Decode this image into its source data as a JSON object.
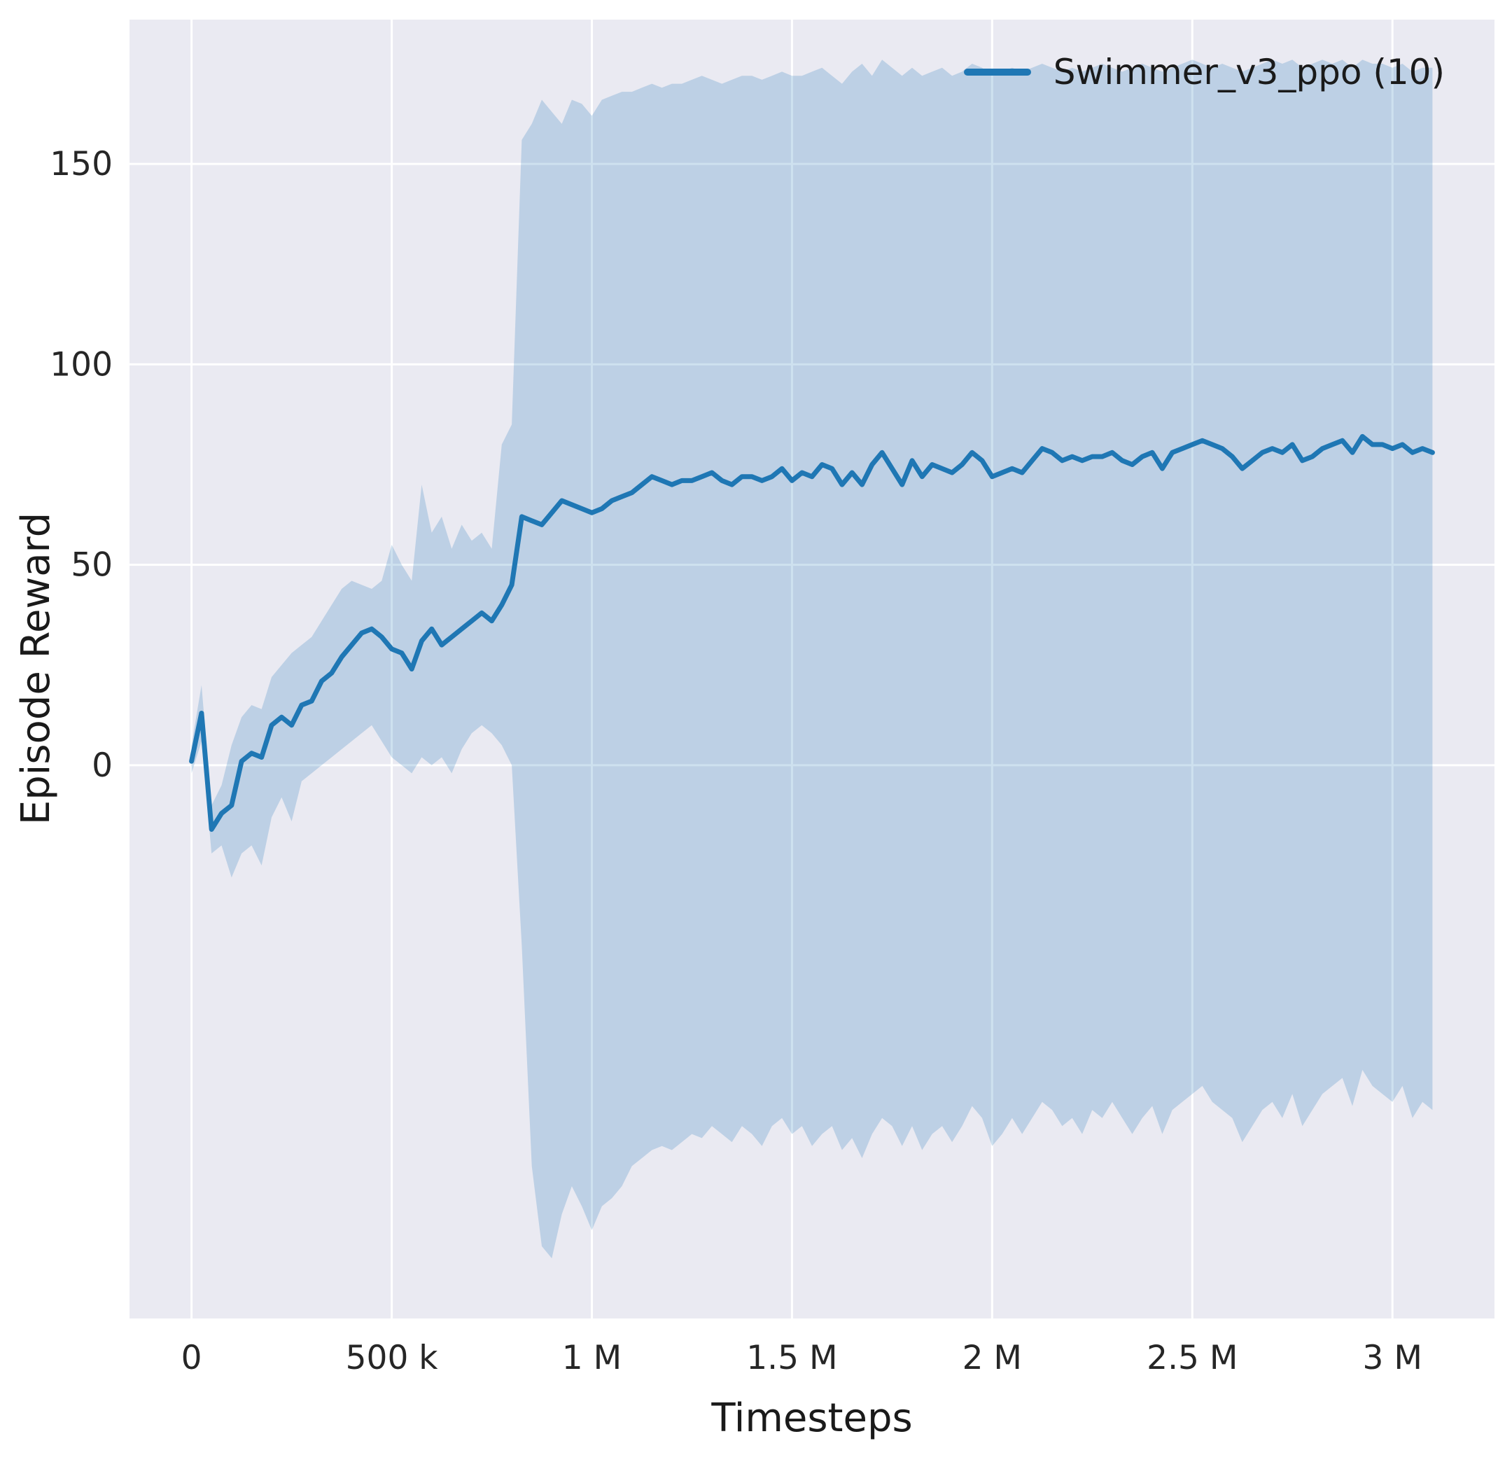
{
  "figure": {
    "background": "#ffffff",
    "axes_background": "#eaeaf2",
    "grid_color": "#ffffff",
    "line_color": "#1f77b4",
    "band_opacity": 0.22,
    "tick_color": "#262626",
    "label_color": "#1a1a1a"
  },
  "chart_data": {
    "type": "line",
    "title": "",
    "xlabel": "Timesteps",
    "ylabel": "Episode Reward",
    "grid": true,
    "legend_position": "upper right",
    "legend": [
      {
        "label": "Swimmer_v3_ppo (10)",
        "color": "#1f77b4"
      }
    ],
    "xlim": [
      -155000,
      3255000
    ],
    "ylim": [
      -138,
      186
    ],
    "x_ticks": [
      {
        "v": 0,
        "label": "0"
      },
      {
        "v": 500000,
        "label": "500 k"
      },
      {
        "v": 1000000,
        "label": "1 M"
      },
      {
        "v": 1500000,
        "label": "1.5 M"
      },
      {
        "v": 2000000,
        "label": "2 M"
      },
      {
        "v": 2500000,
        "label": "2.5 M"
      },
      {
        "v": 3000000,
        "label": "3 M"
      }
    ],
    "y_ticks": [
      {
        "v": 0,
        "label": "0"
      },
      {
        "v": 50,
        "label": "50"
      },
      {
        "v": 100,
        "label": "100"
      },
      {
        "v": 150,
        "label": "150"
      }
    ],
    "series": [
      {
        "name": "Swimmer_v3_ppo (10)",
        "points_format": [
          "timesteps",
          "mean_episode_reward",
          "band_lower",
          "band_upper"
        ],
        "points": [
          [
            0,
            1,
            -2,
            5
          ],
          [
            25000,
            13,
            6,
            20
          ],
          [
            50000,
            -16,
            -22,
            -10
          ],
          [
            75000,
            -12,
            -20,
            -5
          ],
          [
            100000,
            -10,
            -28,
            5
          ],
          [
            125000,
            1,
            -22,
            12
          ],
          [
            150000,
            3,
            -20,
            15
          ],
          [
            175000,
            2,
            -25,
            14
          ],
          [
            200000,
            10,
            -13,
            22
          ],
          [
            225000,
            12,
            -8,
            25
          ],
          [
            250000,
            10,
            -14,
            28
          ],
          [
            275000,
            15,
            -4,
            30
          ],
          [
            300000,
            16,
            -2,
            32
          ],
          [
            325000,
            21,
            0,
            36
          ],
          [
            350000,
            23,
            2,
            40
          ],
          [
            375000,
            27,
            4,
            44
          ],
          [
            400000,
            30,
            6,
            46
          ],
          [
            425000,
            33,
            8,
            45
          ],
          [
            450000,
            34,
            10,
            44
          ],
          [
            475000,
            32,
            6,
            46
          ],
          [
            500000,
            29,
            2,
            55
          ],
          [
            525000,
            28,
            0,
            50
          ],
          [
            550000,
            24,
            -2,
            46
          ],
          [
            575000,
            31,
            2,
            70
          ],
          [
            600000,
            34,
            0,
            58
          ],
          [
            625000,
            30,
            2,
            62
          ],
          [
            650000,
            32,
            -2,
            54
          ],
          [
            675000,
            34,
            4,
            60
          ],
          [
            700000,
            36,
            8,
            56
          ],
          [
            725000,
            38,
            10,
            58
          ],
          [
            750000,
            36,
            8,
            54
          ],
          [
            775000,
            40,
            5,
            80
          ],
          [
            800000,
            45,
            0,
            85
          ],
          [
            825000,
            62,
            -45,
            156
          ],
          [
            850000,
            61,
            -100,
            160
          ],
          [
            875000,
            60,
            -120,
            166
          ],
          [
            900000,
            63,
            -123,
            163
          ],
          [
            925000,
            66,
            -112,
            160
          ],
          [
            950000,
            65,
            -105,
            166
          ],
          [
            975000,
            64,
            -110,
            165
          ],
          [
            1000000,
            63,
            -116,
            162
          ],
          [
            1025000,
            64,
            -110,
            166
          ],
          [
            1050000,
            66,
            -108,
            167
          ],
          [
            1075000,
            67,
            -105,
            168
          ],
          [
            1100000,
            68,
            -100,
            168
          ],
          [
            1125000,
            70,
            -98,
            169
          ],
          [
            1150000,
            72,
            -96,
            170
          ],
          [
            1175000,
            71,
            -95,
            169
          ],
          [
            1200000,
            70,
            -96,
            170
          ],
          [
            1225000,
            71,
            -94,
            170
          ],
          [
            1250000,
            71,
            -92,
            171
          ],
          [
            1275000,
            72,
            -93,
            172
          ],
          [
            1300000,
            73,
            -90,
            171
          ],
          [
            1325000,
            71,
            -92,
            170
          ],
          [
            1350000,
            70,
            -94,
            171
          ],
          [
            1375000,
            72,
            -90,
            172
          ],
          [
            1400000,
            72,
            -92,
            172
          ],
          [
            1425000,
            71,
            -95,
            171
          ],
          [
            1450000,
            72,
            -90,
            172
          ],
          [
            1475000,
            74,
            -88,
            173
          ],
          [
            1500000,
            71,
            -92,
            172
          ],
          [
            1525000,
            73,
            -90,
            172
          ],
          [
            1550000,
            72,
            -95,
            173
          ],
          [
            1575000,
            75,
            -92,
            174
          ],
          [
            1600000,
            74,
            -90,
            172
          ],
          [
            1625000,
            70,
            -96,
            170
          ],
          [
            1650000,
            73,
            -93,
            173
          ],
          [
            1675000,
            70,
            -98,
            175
          ],
          [
            1700000,
            75,
            -92,
            172
          ],
          [
            1725000,
            78,
            -88,
            176
          ],
          [
            1750000,
            74,
            -90,
            174
          ],
          [
            1775000,
            70,
            -95,
            172
          ],
          [
            1800000,
            76,
            -90,
            174
          ],
          [
            1825000,
            72,
            -96,
            172
          ],
          [
            1850000,
            75,
            -92,
            173
          ],
          [
            1875000,
            74,
            -90,
            174
          ],
          [
            1900000,
            73,
            -94,
            172
          ],
          [
            1925000,
            75,
            -90,
            173
          ],
          [
            1950000,
            78,
            -85,
            175
          ],
          [
            1975000,
            76,
            -88,
            174
          ],
          [
            2000000,
            72,
            -95,
            172
          ],
          [
            2025000,
            73,
            -92,
            173
          ],
          [
            2050000,
            74,
            -88,
            174
          ],
          [
            2075000,
            73,
            -92,
            173
          ],
          [
            2100000,
            76,
            -88,
            174
          ],
          [
            2125000,
            79,
            -84,
            175
          ],
          [
            2150000,
            78,
            -86,
            174
          ],
          [
            2175000,
            76,
            -90,
            173
          ],
          [
            2200000,
            77,
            -88,
            174
          ],
          [
            2225000,
            76,
            -92,
            173
          ],
          [
            2250000,
            77,
            -86,
            174
          ],
          [
            2275000,
            77,
            -88,
            175
          ],
          [
            2300000,
            78,
            -84,
            174
          ],
          [
            2325000,
            76,
            -88,
            173
          ],
          [
            2350000,
            75,
            -92,
            174
          ],
          [
            2375000,
            77,
            -88,
            175
          ],
          [
            2400000,
            78,
            -85,
            174
          ],
          [
            2425000,
            74,
            -92,
            173
          ],
          [
            2450000,
            78,
            -86,
            174
          ],
          [
            2475000,
            79,
            -84,
            175
          ],
          [
            2500000,
            80,
            -82,
            176
          ],
          [
            2525000,
            81,
            -80,
            175
          ],
          [
            2550000,
            80,
            -84,
            174
          ],
          [
            2575000,
            79,
            -86,
            175
          ],
          [
            2600000,
            77,
            -88,
            174
          ],
          [
            2625000,
            74,
            -94,
            173
          ],
          [
            2650000,
            76,
            -90,
            174
          ],
          [
            2675000,
            78,
            -86,
            175
          ],
          [
            2700000,
            79,
            -84,
            176
          ],
          [
            2725000,
            78,
            -88,
            175
          ],
          [
            2750000,
            80,
            -82,
            176
          ],
          [
            2775000,
            76,
            -90,
            174
          ],
          [
            2800000,
            77,
            -86,
            175
          ],
          [
            2825000,
            79,
            -82,
            176
          ],
          [
            2850000,
            80,
            -80,
            175
          ],
          [
            2875000,
            81,
            -78,
            176
          ],
          [
            2900000,
            78,
            -85,
            174
          ],
          [
            2925000,
            82,
            -76,
            176
          ],
          [
            2950000,
            80,
            -80,
            175
          ],
          [
            2975000,
            80,
            -82,
            175
          ],
          [
            3000000,
            79,
            -84,
            174
          ],
          [
            3025000,
            80,
            -80,
            175
          ],
          [
            3050000,
            78,
            -88,
            173
          ],
          [
            3075000,
            79,
            -84,
            174
          ],
          [
            3100000,
            78,
            -86,
            174
          ]
        ]
      }
    ]
  }
}
